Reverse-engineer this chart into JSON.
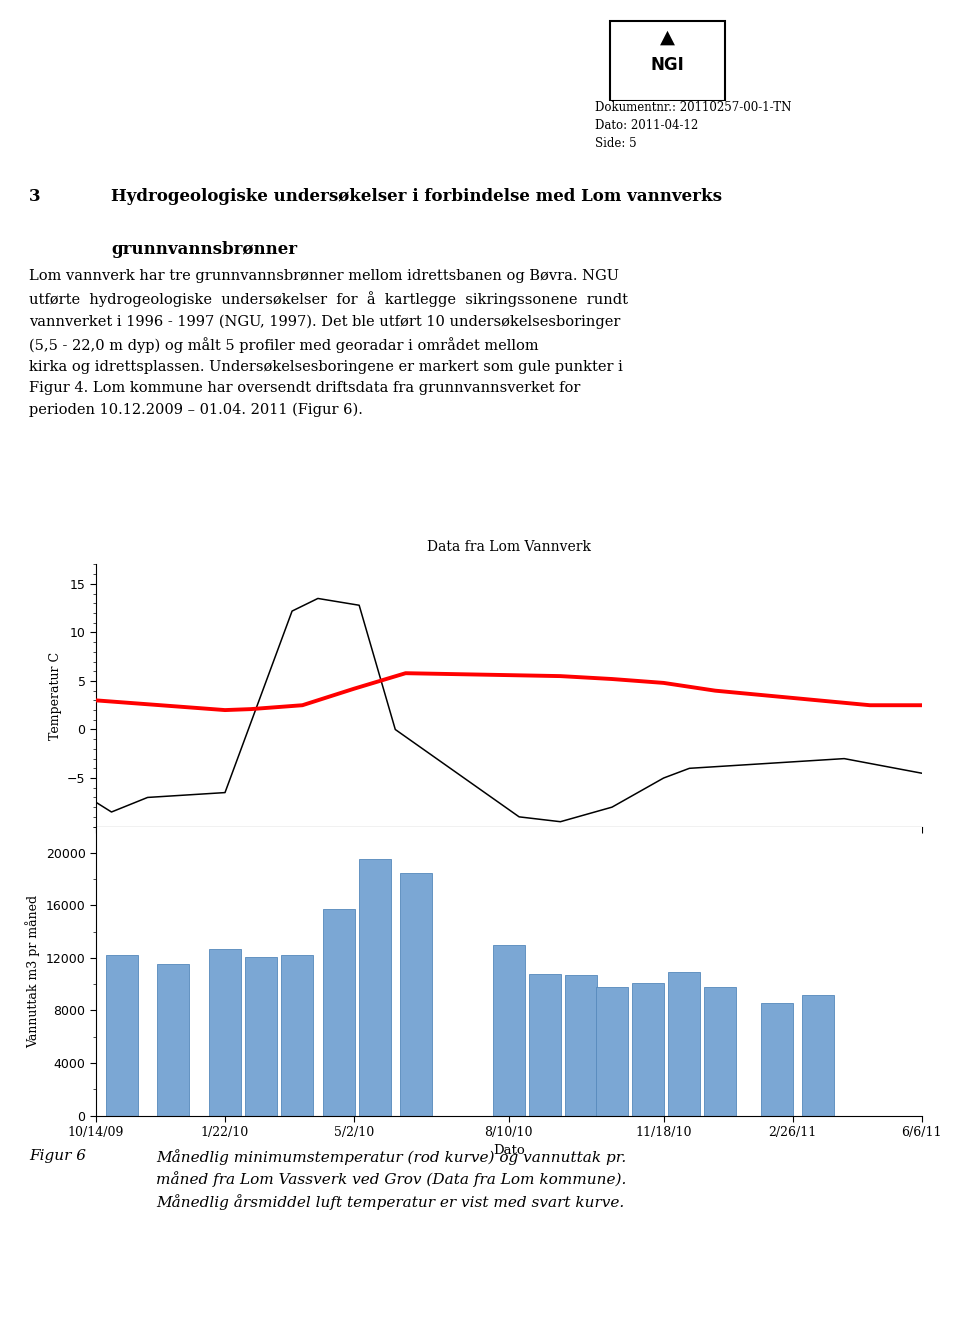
{
  "doc_info": "Dokumentnr.: 20110257-00-1-TN\nDato: 2011-04-12\nSide: 5",
  "section_num": "3",
  "section_title_line1": "Hydrogeologiske undersøkelser i forbindelse med Lom vannverks",
  "section_title_line2": "grunnvannsbrønner",
  "body_para1": "Lom vannverk har tre grunnvannsbrønner mellom idrettsbanen og Bøvra. NGU",
  "body_para2": "utførte  hydrogeologiske  undersøkelser  for  å  kartlegge  sikringssonene  rundt",
  "body_para3": "vannverket i 1996 - 1997 (NGU, 1997). Det ble utført 10 undersøkelsesboringer",
  "body_para4": "(5,5 - 22,0 m dyp) og målt 5 profiler med georadar i området mellom",
  "body_para5": "kirka og idrettsplassen. Undersøkelsesboringene er markert som gule punkter i",
  "body_para6": "Figur 4. Lom kommune har oversendt driftsdata fra grunnvannsverket for",
  "body_para7": "perioden 10.12.2009 – 01.04. 2011 (Figur 6).",
  "chart_title": "Data fra Lom Vannverk",
  "temp_ylabel": "Temperatur C",
  "bar_ylabel": "Vannuttak m3 pr måned",
  "xlabel": "Dato",
  "x_dates": [
    "10/14/09",
    "1/22/10",
    "5/2/10",
    "8/10/10",
    "11/18/10",
    "2/26/11",
    "6/6/11"
  ],
  "black_x": [
    0.0,
    0.3,
    1.0,
    2.5,
    3.8,
    4.3,
    5.1,
    5.8,
    8.2,
    9.0,
    10.0,
    11.0,
    11.5,
    13.0,
    14.5,
    16.0
  ],
  "black_y": [
    -7.5,
    -8.5,
    -7.0,
    -6.5,
    12.2,
    13.5,
    12.8,
    0.0,
    -9.0,
    -9.5,
    -8.0,
    -5.0,
    -4.0,
    -3.5,
    -3.0,
    -4.5
  ],
  "red_x": [
    0.0,
    0.5,
    1.0,
    2.0,
    2.5,
    3.0,
    4.0,
    5.0,
    6.0,
    7.0,
    8.0,
    9.0,
    10.0,
    11.0,
    12.0,
    13.0,
    14.0,
    15.0,
    16.0
  ],
  "red_y": [
    3.0,
    2.8,
    2.6,
    2.2,
    2.0,
    2.1,
    2.5,
    4.2,
    5.8,
    5.7,
    5.6,
    5.5,
    5.2,
    4.8,
    4.0,
    3.5,
    3.0,
    2.5,
    2.5
  ],
  "bar_positions": [
    0.5,
    1.5,
    2.5,
    3.2,
    3.9,
    4.7,
    5.4,
    6.2,
    8.0,
    8.7,
    9.4,
    10.0,
    10.7,
    11.4,
    12.1,
    13.2,
    14.0
  ],
  "bar_heights": [
    12200,
    11500,
    12700,
    12100,
    12200,
    15700,
    19500,
    18500,
    13000,
    10800,
    10700,
    9800,
    10100,
    10900,
    9800,
    8600,
    9200
  ],
  "bar_color": "#7ba7d4",
  "bar_edge_color": "#5588bb",
  "temp_ylim": [
    -10,
    17
  ],
  "temp_yticks": [
    -5,
    0,
    5,
    10,
    15
  ],
  "bar_ylim": [
    0,
    22000
  ],
  "bar_yticks": [
    0,
    4000,
    8000,
    12000,
    16000,
    20000
  ],
  "xtick_positions": [
    0,
    2.5,
    5.0,
    8.0,
    11.0,
    13.5,
    16.0
  ],
  "xlim": [
    0,
    16
  ],
  "caption_label": "Figur 6",
  "caption_body": "Månedlig minimumstemperatur (rod kurve) og vannuttak pr.\nmåned fra Lom Vassverk ved Grov (Data fra Lom kommune).\nMånedlig årsmiddel luft temperatur er vist med svart kurve."
}
